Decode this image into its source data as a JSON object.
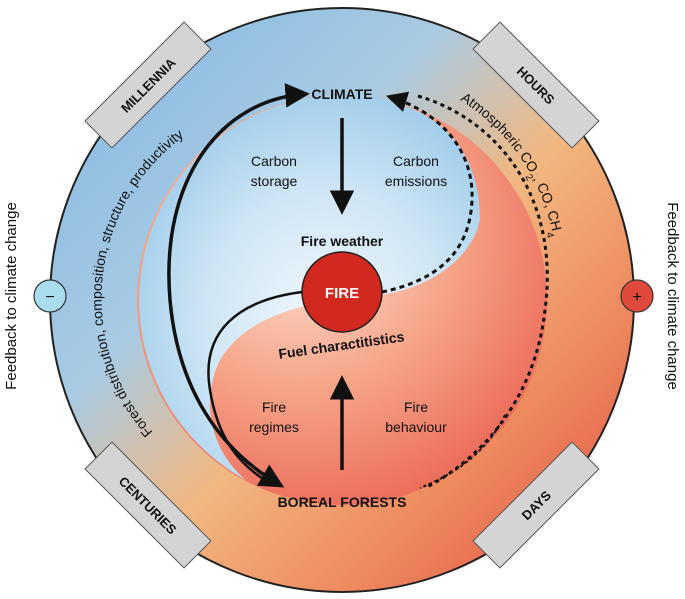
{
  "center": {
    "fire": "FIRE"
  },
  "nodes": {
    "climate": "CLIMATE",
    "boreal_forests": "BOREAL FORESTS"
  },
  "inner_labels": {
    "fire_weather": "Fire weather",
    "fuel": "Fuel charactitistics",
    "carbon_storage": [
      "Carbon",
      "storage"
    ],
    "carbon_emissions": [
      "Carbon",
      "emissions"
    ],
    "fire_regimes": [
      "Fire",
      "regimes"
    ],
    "fire_behaviour": [
      "Fire",
      "behaviour"
    ]
  },
  "timescales": {
    "millennia": "MILLENNIA",
    "hours": "HOURS",
    "centuries": "CENTURIES",
    "days": "DAYS"
  },
  "arc_labels": {
    "forest": "Forest distribution, composition, structure, productivity",
    "atmos_prefix": "Atmospheric CO",
    "atmos_sub2": "2",
    "atmos_mid": ", CO, CH",
    "atmos_sub4": "4"
  },
  "feedback": {
    "left_text": "Feedback to climate change",
    "right_text": "Feedback to climate change",
    "negative_sign": "−",
    "positive_sign": "+"
  },
  "colors": {
    "blue_light": "#d9ecf8",
    "blue": "#8cc2e6",
    "red_light": "#f9c7b0",
    "red": "#e8574a",
    "fire_red": "#d1281f",
    "tab_gray": "#d4d4d4",
    "neg_badge": "#a9dcec",
    "pos_badge": "#e0493c"
  }
}
